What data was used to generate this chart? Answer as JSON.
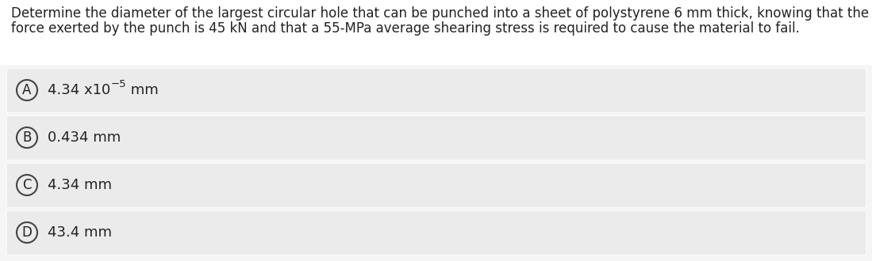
{
  "background_color": "#f5f5f5",
  "question_bg_color": "#ffffff",
  "question_text_line1": "Determine the diameter of the largest circular hole that can be punched into a sheet of polystyrene 6 mm thick, knowing that the",
  "question_text_line2": "force exerted by the punch is 45 kN and that a 55-MPa average shearing stress is required to cause the material to fail.",
  "options": [
    {
      "letter": "A",
      "main_text": "4.34 x10",
      "superscript": "−5",
      "suffix": " mm"
    },
    {
      "letter": "B",
      "main_text": "0.434 mm",
      "superscript": "",
      "suffix": ""
    },
    {
      "letter": "C",
      "main_text": "4.34 mm",
      "superscript": "",
      "suffix": ""
    },
    {
      "letter": "D",
      "main_text": "43.4 mm",
      "superscript": "",
      "suffix": ""
    }
  ],
  "option_bg_color": "#ebebeb",
  "option_border_color": "#ffffff",
  "circle_edge_color": "#444444",
  "circle_fill_color": "#ebebeb",
  "text_color": "#222222",
  "font_size_question": 12.0,
  "font_size_option": 13.0,
  "font_size_letter": 12.0,
  "font_size_super": 9.5
}
